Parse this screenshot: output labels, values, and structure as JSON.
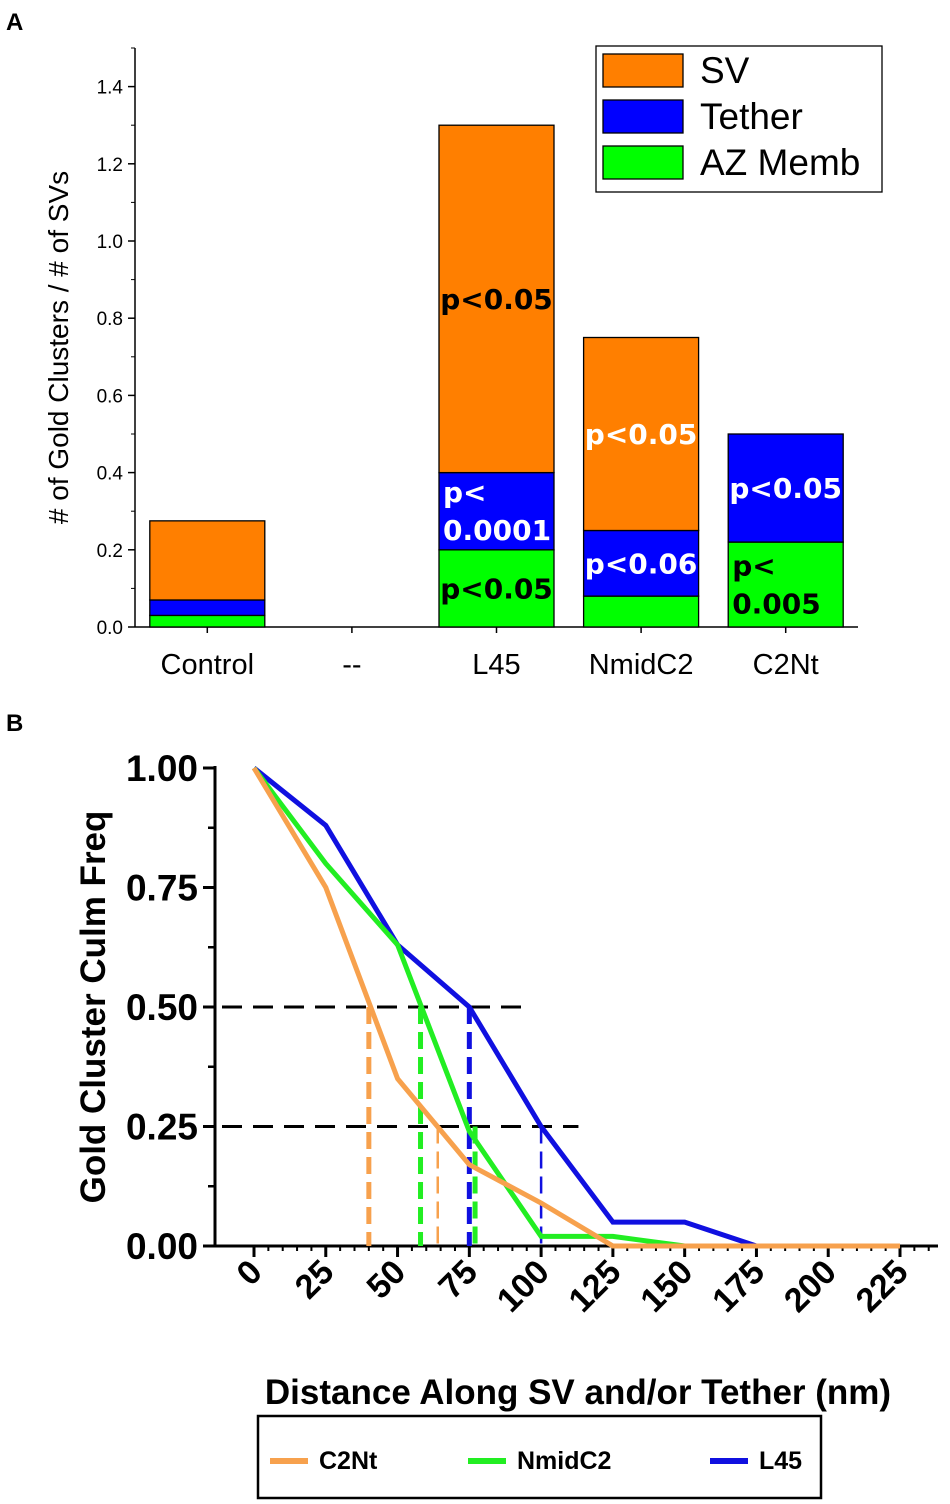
{
  "panels": {
    "a_label": "A",
    "b_label": "B"
  },
  "chart_data": [
    {
      "type": "bar",
      "stacked": true,
      "title": "",
      "xlabel": "",
      "ylabel": "# of Gold Clusters / # of SVs",
      "ylim": [
        0,
        1.5
      ],
      "yticks": [
        "0.0",
        "0.2",
        "0.4",
        "0.6",
        "0.8",
        "1.0",
        "1.2",
        "1.4"
      ],
      "categories": [
        "Control",
        "--",
        "L45",
        "NmidC2",
        "C2Nt"
      ],
      "series": [
        {
          "name": "AZ Memb",
          "color": "#00ff00",
          "values": [
            0.03,
            0,
            0.2,
            0.08,
            0.22
          ]
        },
        {
          "name": "Tether",
          "color": "#0000ff",
          "values": [
            0.04,
            0,
            0.2,
            0.17,
            0.28
          ]
        },
        {
          "name": "SV",
          "color": "#ff7f00",
          "values": [
            0.205,
            0,
            0.9,
            0.5,
            0.0
          ]
        }
      ],
      "legend": [
        "SV",
        "Tether",
        "AZ Memb"
      ],
      "legend_position": "top-right",
      "annotations": [
        {
          "category": "L45",
          "series": "SV",
          "lines": [
            "p<0.05"
          ],
          "color": "#000000"
        },
        {
          "category": "L45",
          "series": "Tether",
          "lines": [
            "p<",
            "0.0001"
          ],
          "color": "#ffffff"
        },
        {
          "category": "L45",
          "series": "AZ Memb",
          "lines": [
            "p<0.05"
          ],
          "color": "#000000"
        },
        {
          "category": "NmidC2",
          "series": "SV",
          "lines": [
            "p<0.05"
          ],
          "color": "#ffffff"
        },
        {
          "category": "NmidC2",
          "series": "Tether",
          "lines": [
            "p<0.06"
          ],
          "color": "#ffffff"
        },
        {
          "category": "C2Nt",
          "series": "Tether",
          "lines": [
            "p<0.05"
          ],
          "color": "#ffffff"
        },
        {
          "category": "C2Nt",
          "series": "AZ Memb",
          "lines": [
            "p<",
            "0.005"
          ],
          "color": "#000000"
        }
      ]
    },
    {
      "type": "line",
      "title": "",
      "xlabel": "Distance Along SV and/or Tether (nm)",
      "ylabel": "Gold Cluster Culm Freq",
      "xlim": [
        0,
        225
      ],
      "ylim": [
        0,
        1
      ],
      "xticks": [
        "0",
        "25",
        "50",
        "75",
        "100",
        "125",
        "150",
        "175",
        "200",
        "225"
      ],
      "yticks": [
        "0.00",
        "0.25",
        "0.50",
        "0.75",
        "1.00"
      ],
      "series": [
        {
          "name": "C2Nt",
          "color": "#f7a14d",
          "x": [
            0,
            25,
            50,
            75,
            100,
            125,
            150,
            175,
            200,
            225
          ],
          "y": [
            1.0,
            0.75,
            0.35,
            0.17,
            0.09,
            0.0,
            0.0,
            0.0,
            0.0,
            0.0
          ]
        },
        {
          "name": "NmidC2",
          "color": "#22ee22",
          "x": [
            0,
            25,
            50,
            75,
            100,
            125,
            150,
            175,
            200,
            225
          ],
          "y": [
            1.0,
            0.8,
            0.63,
            0.24,
            0.02,
            0.02,
            0.0,
            0.0,
            0.0,
            0.0
          ]
        },
        {
          "name": "L45",
          "color": "#1010e0",
          "x": [
            0,
            25,
            50,
            75,
            100,
            125,
            150,
            175,
            200,
            225
          ],
          "y": [
            1.0,
            0.88,
            0.63,
            0.5,
            0.25,
            0.05,
            0.05,
            0.0,
            0.0,
            0.0
          ]
        }
      ],
      "reference_lines": [
        {
          "kind": "horizontal",
          "y": 0.5,
          "x_from": 0,
          "x_to": 93,
          "color": "#000000"
        },
        {
          "kind": "horizontal",
          "y": 0.25,
          "x_from": 0,
          "x_to": 113,
          "color": "#000000"
        },
        {
          "kind": "vertical",
          "x": 40,
          "y_top": 0.5,
          "color": "#f7a14d",
          "weight": "thick"
        },
        {
          "kind": "vertical",
          "x": 64,
          "y_top": 0.25,
          "color": "#f7a14d",
          "weight": "thin"
        },
        {
          "kind": "vertical",
          "x": 58,
          "y_top": 0.5,
          "color": "#22ee22",
          "weight": "thick"
        },
        {
          "kind": "vertical",
          "x": 77,
          "y_top": 0.25,
          "color": "#22ee22",
          "weight": "thick"
        },
        {
          "kind": "vertical",
          "x": 75,
          "y_top": 0.5,
          "color": "#1010e0",
          "weight": "thick"
        },
        {
          "kind": "vertical",
          "x": 100,
          "y_top": 0.25,
          "color": "#1010e0",
          "weight": "thin"
        }
      ],
      "legend": [
        "C2Nt",
        "NmidC2",
        "L45"
      ],
      "legend_position": "bottom"
    }
  ]
}
